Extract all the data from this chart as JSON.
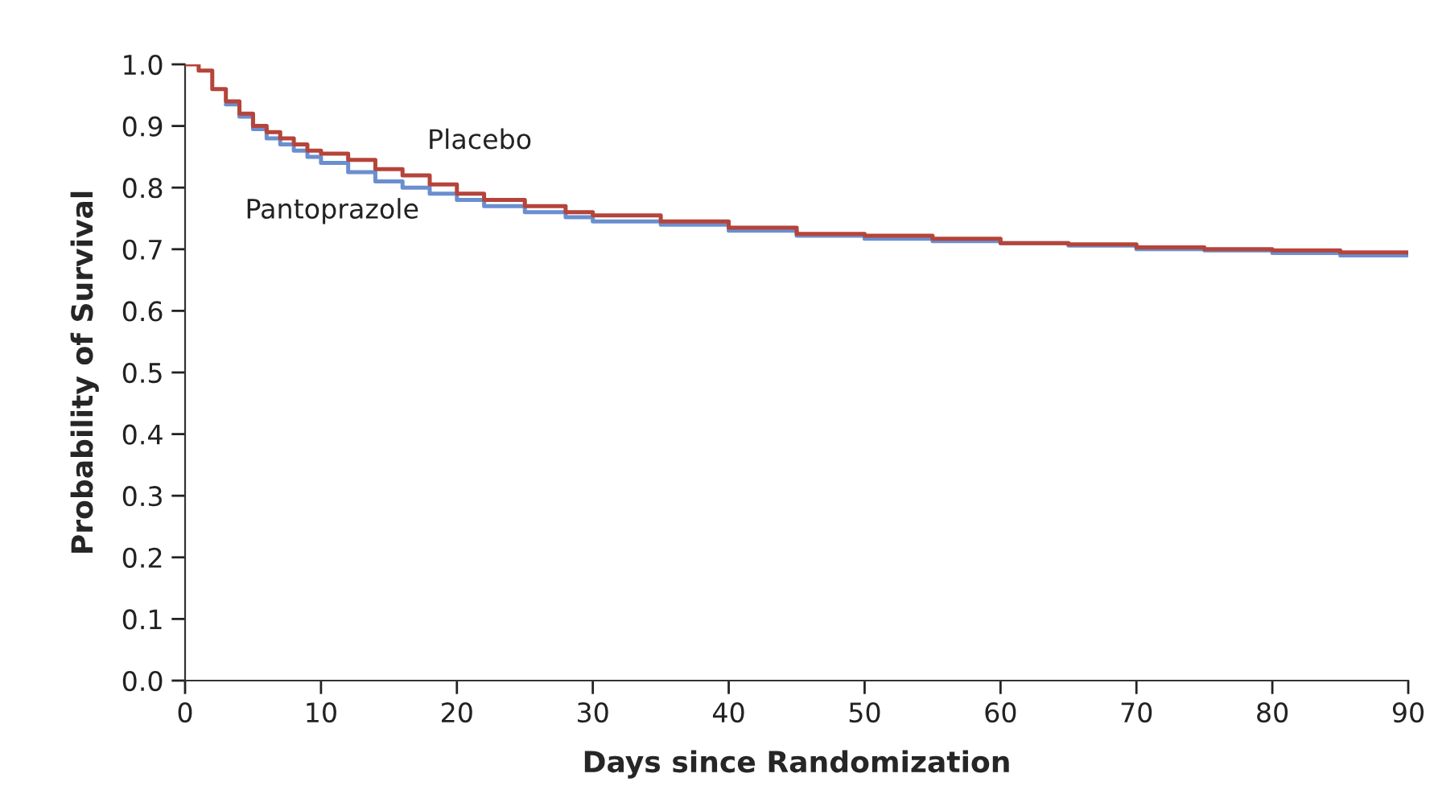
{
  "chart_data": {
    "type": "step",
    "xlabel": "Days since Randomization",
    "ylabel": "Probability of Survival",
    "xlim": [
      0,
      90
    ],
    "xticks": [
      0,
      10,
      20,
      30,
      40,
      50,
      60,
      70,
      80,
      90
    ],
    "ylim": [
      0,
      1.0
    ],
    "yticks": [
      {
        "value": 0,
        "label": "0.0"
      },
      {
        "value": 0.1,
        "label": "0.1"
      },
      {
        "value": 0.2,
        "label": "0.2"
      },
      {
        "value": 0.3,
        "label": "0.3"
      },
      {
        "value": 0.4,
        "label": "0.4"
      },
      {
        "value": 0.5,
        "label": "0.5"
      },
      {
        "value": 0.6,
        "label": "0.6"
      },
      {
        "value": 0.7,
        "label": "0.7"
      },
      {
        "value": 0.8,
        "label": "0.8"
      },
      {
        "value": 0.9,
        "label": "0.9"
      },
      {
        "value": 1.0,
        "label": "1.0"
      }
    ],
    "grid": false,
    "legend": false,
    "x": [
      0,
      1,
      2,
      3,
      4,
      5,
      6,
      7,
      8,
      9,
      10,
      12,
      14,
      16,
      18,
      20,
      22,
      25,
      28,
      30,
      35,
      40,
      45,
      50,
      55,
      60,
      65,
      70,
      75,
      80,
      85,
      90
    ],
    "series": [
      {
        "name": "Placebo",
        "color": "#b5443a",
        "values": [
          1.0,
          0.99,
          0.96,
          0.94,
          0.92,
          0.9,
          0.89,
          0.88,
          0.87,
          0.86,
          0.855,
          0.845,
          0.83,
          0.82,
          0.805,
          0.79,
          0.78,
          0.77,
          0.76,
          0.755,
          0.745,
          0.735,
          0.725,
          0.722,
          0.717,
          0.71,
          0.708,
          0.703,
          0.7,
          0.698,
          0.695,
          0.694
        ]
      },
      {
        "name": "Pantoprazole",
        "color": "#6a8fd0",
        "values": [
          null,
          null,
          null,
          0.935,
          0.915,
          0.895,
          0.88,
          0.87,
          0.86,
          0.85,
          0.84,
          0.825,
          0.81,
          0.8,
          0.79,
          0.78,
          0.77,
          0.76,
          0.752,
          0.745,
          0.74,
          0.73,
          0.722,
          0.717,
          0.713,
          0.71,
          0.706,
          0.7,
          0.698,
          0.694,
          0.69,
          0.69
        ]
      }
    ]
  }
}
